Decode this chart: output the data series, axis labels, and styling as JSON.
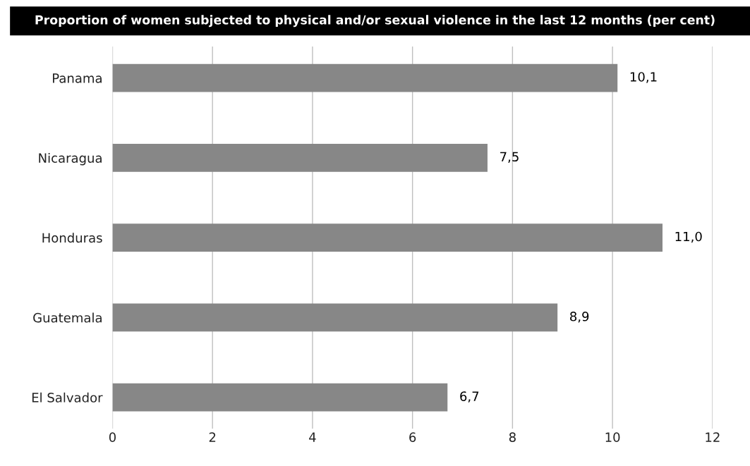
{
  "chart_data": {
    "type": "bar",
    "orientation": "horizontal",
    "title": "Proportion of women subjected to physical and/or sexual violence in the last 12 months (per cent)",
    "categories": [
      "Panama",
      "Nicaragua",
      "Honduras",
      "Guatemala",
      "El Salvador"
    ],
    "values": [
      10.1,
      7.5,
      11.0,
      8.9,
      6.7
    ],
    "value_labels": [
      "10,1",
      "7,5",
      "11,0",
      "8,9",
      "6,7"
    ],
    "color": "#878787",
    "xlim": [
      0,
      12
    ],
    "xticks": [
      0,
      2,
      4,
      6,
      8,
      10,
      12
    ],
    "grid": "x",
    "legend": false
  }
}
